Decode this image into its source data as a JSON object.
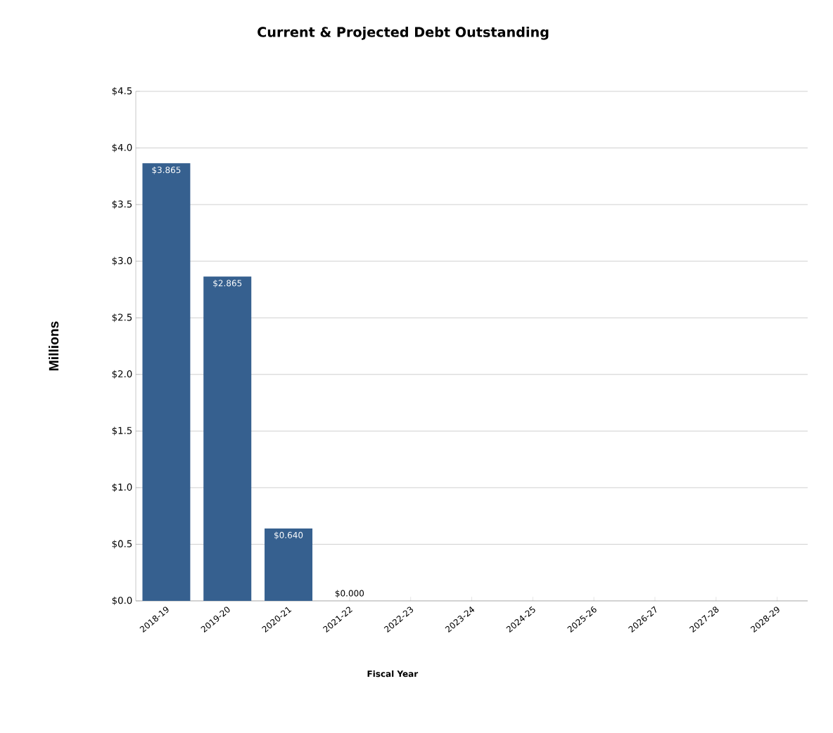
{
  "chart_data": {
    "type": "bar",
    "title": "Current & Projected Debt Outstanding",
    "xlabel": "Fiscal Year",
    "ylabel": "Millions",
    "categories": [
      "2018-19",
      "2019-20",
      "2020-21",
      "2021-22",
      "2022-23",
      "2023-24",
      "2024-25",
      "2025-26",
      "2026-27",
      "2027-28",
      "2028-29"
    ],
    "values": [
      3.865,
      2.865,
      0.64,
      0,
      0,
      0,
      0,
      0,
      0,
      0,
      0
    ],
    "value_labels": [
      "$3.865",
      "$2.865",
      "$0.640",
      "$0.000",
      null,
      null,
      null,
      null,
      null,
      null,
      null
    ],
    "color": "#36608f",
    "ylim": [
      0,
      4.5
    ],
    "yticks": [
      {
        "value": 0,
        "label": "$0.0"
      },
      {
        "value": 0.5,
        "label": "$0.5"
      },
      {
        "value": 1,
        "label": "$1.0"
      },
      {
        "value": 1.5,
        "label": "$1.5"
      },
      {
        "value": 2,
        "label": "$2.0"
      },
      {
        "value": 2.5,
        "label": "$2.5"
      },
      {
        "value": 3,
        "label": "$3.0"
      },
      {
        "value": 3.5,
        "label": "$3.5"
      },
      {
        "value": 4,
        "label": "$4.0"
      },
      {
        "value": 4.5,
        "label": "$4.5"
      }
    ],
    "grid": "y"
  }
}
